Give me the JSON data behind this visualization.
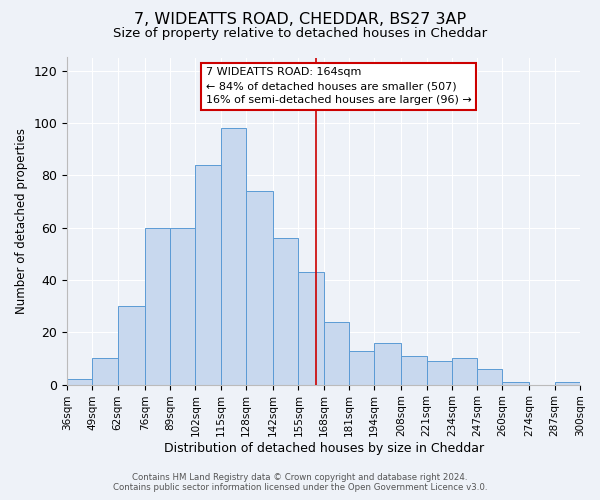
{
  "title": "7, WIDEATTS ROAD, CHEDDAR, BS27 3AP",
  "subtitle": "Size of property relative to detached houses in Cheddar",
  "xlabel": "Distribution of detached houses by size in Cheddar",
  "ylabel": "Number of detached properties",
  "bar_labels": [
    "36sqm",
    "49sqm",
    "62sqm",
    "76sqm",
    "89sqm",
    "102sqm",
    "115sqm",
    "128sqm",
    "142sqm",
    "155sqm",
    "168sqm",
    "181sqm",
    "194sqm",
    "208sqm",
    "221sqm",
    "234sqm",
    "247sqm",
    "260sqm",
    "274sqm",
    "287sqm",
    "300sqm"
  ],
  "bar_values": [
    2,
    10,
    30,
    60,
    60,
    84,
    98,
    74,
    56,
    43,
    24,
    13,
    16,
    11,
    9,
    10,
    6,
    1,
    0,
    1
  ],
  "bin_edges": [
    36,
    49,
    62,
    76,
    89,
    102,
    115,
    128,
    142,
    155,
    168,
    181,
    194,
    208,
    221,
    234,
    247,
    260,
    274,
    287,
    300
  ],
  "bar_color": "#c8d8ee",
  "bar_edge_color": "#5b9bd5",
  "vline_x": 164,
  "vline_color": "#cc0000",
  "ylim": [
    0,
    125
  ],
  "yticks": [
    0,
    20,
    40,
    60,
    80,
    100,
    120
  ],
  "annotation_title": "7 WIDEATTS ROAD: 164sqm",
  "annotation_line1": "← 84% of detached houses are smaller (507)",
  "annotation_line2": "16% of semi-detached houses are larger (96) →",
  "annotation_box_color": "#ffffff",
  "annotation_box_edge_color": "#cc0000",
  "footer_line1": "Contains HM Land Registry data © Crown copyright and database right 2024.",
  "footer_line2": "Contains public sector information licensed under the Open Government Licence v3.0.",
  "bg_color": "#eef2f8",
  "title_fontsize": 11.5,
  "subtitle_fontsize": 9.5,
  "grid_color": "#ffffff"
}
